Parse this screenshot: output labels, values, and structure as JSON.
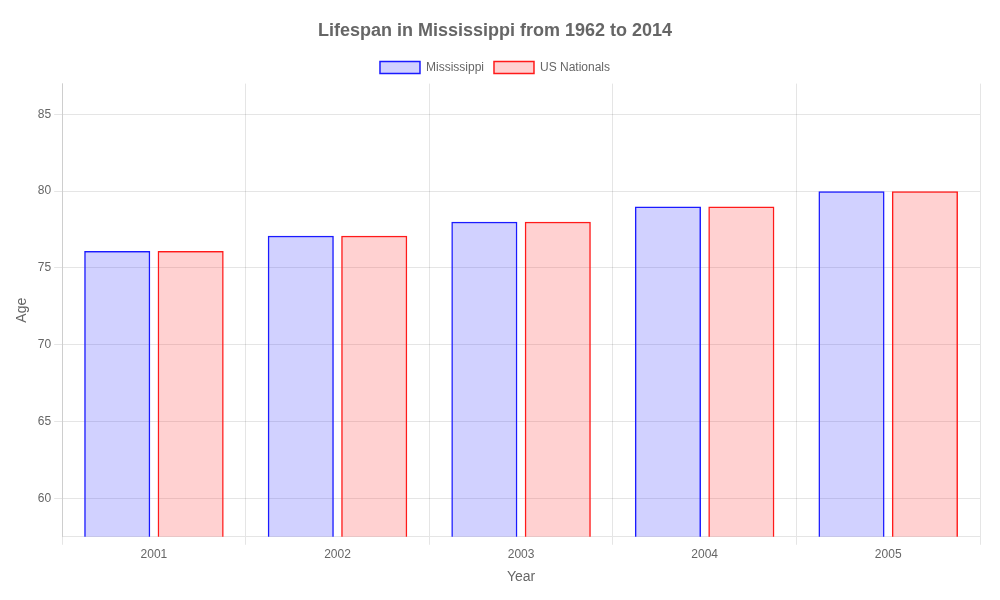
{
  "chart_data": {
    "type": "bar",
    "title": "Lifespan in Mississippi from 1962 to 2014",
    "x_label": "Year",
    "y_label": "Age",
    "categories": [
      2001,
      2002,
      2003,
      2004,
      2005
    ],
    "series": [
      {
        "name": "Mississippi",
        "color": "#1A1AFF",
        "values": [
          76.1,
          77.1,
          78.0,
          79.0,
          80.0
        ]
      },
      {
        "name": "US Nationals",
        "color": "#FF1A1A",
        "values": [
          76.1,
          77.1,
          78.0,
          79.0,
          80.0
        ]
      }
    ],
    "ylim": [
      57.5,
      87
    ],
    "yticks": [
      60,
      65,
      70,
      75,
      80,
      85
    ],
    "grid": true,
    "legend": "top"
  }
}
